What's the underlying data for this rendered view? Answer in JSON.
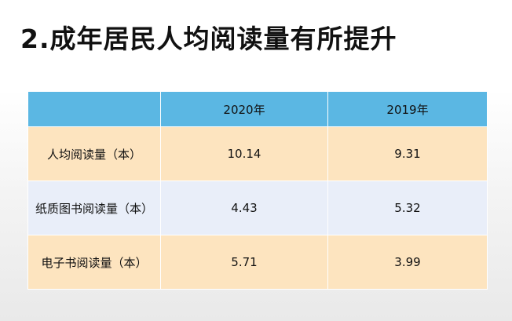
{
  "title": "2.成年居民人均阅读量有所提升",
  "table": {
    "headers": [
      "",
      "2020年",
      "2019年"
    ],
    "rows": [
      {
        "label": "人均阅读量（本）",
        "y2020": "10.14",
        "y2019": "9.31"
      },
      {
        "label": "纸质图书阅读量（本）",
        "y2020": "4.43",
        "y2019": "5.32"
      },
      {
        "label": "电子书阅读量（本）",
        "y2020": "5.71",
        "y2019": "3.99"
      }
    ]
  },
  "colors": {
    "header": "#5bb7e3",
    "row_odd": "#fde4bf",
    "row_even": "#e9eef9"
  }
}
